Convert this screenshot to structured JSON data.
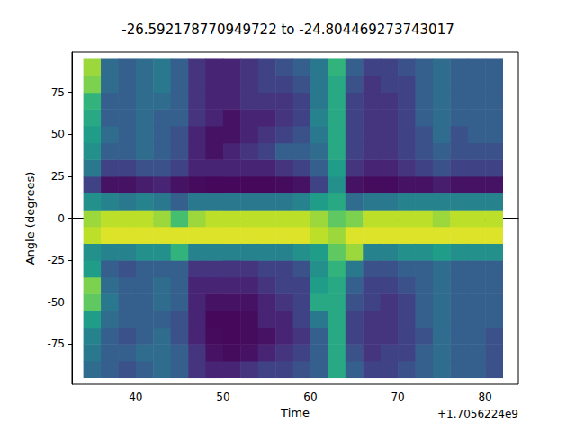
{
  "chart_data": {
    "type": "heatmap",
    "title": "-26.592178770949722 to -24.804469273743017",
    "x_label": "Time",
    "y_label": "Angle (degrees)",
    "annotations": [
      "+1.7056224e9"
    ],
    "x": [
      35,
      37,
      39,
      41,
      43,
      45,
      47,
      49,
      51,
      53,
      55,
      57,
      59,
      61,
      63,
      65,
      67,
      69,
      71,
      73,
      75,
      77,
      79,
      81
    ],
    "y": [
      -90,
      -80,
      -70,
      -60,
      -50,
      -40,
      -30,
      -20,
      -10,
      0,
      10,
      20,
      30,
      40,
      50,
      60,
      70,
      80,
      90
    ],
    "cells": [
      [
        0.35,
        0.4,
        0.45,
        0.55,
        0.75,
        0.8,
        0.55,
        0.5,
        0.9,
        0.85,
        0.5,
        0.2,
        0.4,
        0.5,
        0.55,
        0.6,
        0.65,
        0.8,
        0.85
      ],
      [
        0.3,
        0.3,
        0.3,
        0.35,
        0.4,
        0.35,
        0.3,
        0.45,
        0.95,
        0.9,
        0.45,
        0.05,
        0.2,
        0.3,
        0.35,
        0.3,
        0.3,
        0.35,
        0.35
      ],
      [
        0.25,
        0.3,
        0.25,
        0.3,
        0.3,
        0.3,
        0.25,
        0.45,
        0.95,
        0.9,
        0.4,
        0.05,
        0.2,
        0.3,
        0.3,
        0.3,
        0.3,
        0.3,
        0.3
      ],
      [
        0.3,
        0.35,
        0.3,
        0.3,
        0.3,
        0.3,
        0.3,
        0.5,
        0.95,
        0.9,
        0.45,
        0.08,
        0.25,
        0.35,
        0.35,
        0.35,
        0.35,
        0.35,
        0.35
      ],
      [
        0.35,
        0.35,
        0.35,
        0.3,
        0.35,
        0.35,
        0.3,
        0.5,
        0.95,
        0.85,
        0.4,
        0.1,
        0.25,
        0.3,
        0.3,
        0.3,
        0.35,
        0.4,
        0.4
      ],
      [
        0.3,
        0.3,
        0.25,
        0.25,
        0.3,
        0.3,
        0.3,
        0.65,
        0.95,
        0.7,
        0.3,
        0.05,
        0.2,
        0.25,
        0.25,
        0.3,
        0.3,
        0.3,
        0.3
      ],
      [
        0.15,
        0.15,
        0.1,
        0.1,
        0.1,
        0.1,
        0.15,
        0.45,
        0.95,
        0.85,
        0.4,
        0.03,
        0.1,
        0.1,
        0.1,
        0.15,
        0.15,
        0.15,
        0.15
      ],
      [
        0.1,
        0.05,
        0.03,
        0.02,
        0.05,
        0.1,
        0.15,
        0.45,
        0.95,
        0.9,
        0.4,
        0.02,
        0.1,
        0.05,
        0.05,
        0.1,
        0.1,
        0.1,
        0.1
      ],
      [
        0.1,
        0.03,
        0.02,
        0.02,
        0.05,
        0.1,
        0.15,
        0.45,
        0.95,
        0.9,
        0.4,
        0.02,
        0.1,
        0.1,
        0.05,
        0.05,
        0.1,
        0.1,
        0.1
      ],
      [
        0.15,
        0.05,
        0.03,
        0.03,
        0.05,
        0.1,
        0.15,
        0.45,
        0.95,
        0.9,
        0.4,
        0.02,
        0.1,
        0.15,
        0.1,
        0.1,
        0.15,
        0.15,
        0.15
      ],
      [
        0.2,
        0.1,
        0.05,
        0.1,
        0.1,
        0.15,
        0.2,
        0.45,
        0.95,
        0.9,
        0.4,
        0.02,
        0.1,
        0.2,
        0.15,
        0.1,
        0.15,
        0.2,
        0.2
      ],
      [
        0.2,
        0.15,
        0.1,
        0.1,
        0.15,
        0.2,
        0.2,
        0.45,
        0.95,
        0.9,
        0.4,
        0.03,
        0.15,
        0.3,
        0.2,
        0.15,
        0.15,
        0.2,
        0.25
      ],
      [
        0.25,
        0.2,
        0.15,
        0.2,
        0.2,
        0.2,
        0.25,
        0.5,
        0.95,
        0.9,
        0.45,
        0.05,
        0.2,
        0.3,
        0.25,
        0.2,
        0.2,
        0.25,
        0.3
      ],
      [
        0.3,
        0.3,
        0.3,
        0.4,
        0.6,
        0.55,
        0.5,
        0.55,
        0.9,
        0.85,
        0.55,
        0.2,
        0.3,
        0.35,
        0.4,
        0.45,
        0.4,
        0.4,
        0.4
      ],
      [
        0.6,
        0.6,
        0.6,
        0.6,
        0.6,
        0.6,
        0.65,
        0.75,
        0.85,
        0.75,
        0.6,
        0.5,
        0.55,
        0.6,
        0.6,
        0.6,
        0.6,
        0.6,
        0.65
      ],
      [
        0.3,
        0.25,
        0.2,
        0.2,
        0.25,
        0.3,
        0.4,
        0.85,
        0.95,
        0.8,
        0.35,
        0.05,
        0.15,
        0.2,
        0.2,
        0.2,
        0.2,
        0.25,
        0.3
      ],
      [
        0.2,
        0.15,
        0.15,
        0.15,
        0.2,
        0.2,
        0.25,
        0.45,
        0.95,
        0.9,
        0.4,
        0.03,
        0.1,
        0.15,
        0.15,
        0.15,
        0.15,
        0.15,
        0.2
      ],
      [
        0.2,
        0.2,
        0.15,
        0.15,
        0.15,
        0.2,
        0.25,
        0.45,
        0.95,
        0.9,
        0.4,
        0.03,
        0.1,
        0.15,
        0.15,
        0.15,
        0.15,
        0.2,
        0.2
      ],
      [
        0.25,
        0.2,
        0.2,
        0.2,
        0.2,
        0.25,
        0.3,
        0.5,
        0.95,
        0.9,
        0.45,
        0.05,
        0.15,
        0.2,
        0.2,
        0.2,
        0.2,
        0.2,
        0.25
      ],
      [
        0.3,
        0.3,
        0.25,
        0.3,
        0.3,
        0.3,
        0.3,
        0.5,
        0.95,
        0.9,
        0.45,
        0.05,
        0.2,
        0.25,
        0.25,
        0.3,
        0.3,
        0.3,
        0.3
      ],
      [
        0.35,
        0.35,
        0.35,
        0.35,
        0.35,
        0.35,
        0.35,
        0.55,
        0.95,
        0.85,
        0.45,
        0.08,
        0.25,
        0.3,
        0.35,
        0.35,
        0.35,
        0.35,
        0.35
      ],
      [
        0.3,
        0.3,
        0.3,
        0.3,
        0.3,
        0.3,
        0.3,
        0.5,
        0.95,
        0.9,
        0.45,
        0.05,
        0.2,
        0.25,
        0.25,
        0.3,
        0.3,
        0.3,
        0.3
      ],
      [
        0.3,
        0.3,
        0.3,
        0.3,
        0.3,
        0.3,
        0.3,
        0.5,
        0.95,
        0.9,
        0.45,
        0.05,
        0.2,
        0.25,
        0.3,
        0.3,
        0.3,
        0.3,
        0.3
      ],
      [
        0.25,
        0.25,
        0.25,
        0.3,
        0.3,
        0.3,
        0.3,
        0.5,
        0.95,
        0.9,
        0.45,
        0.05,
        0.2,
        0.25,
        0.3,
        0.3,
        0.3,
        0.3,
        0.3
      ]
    ],
    "color_range": [
      0,
      1
    ],
    "xlim": [
      32.7,
      83.8
    ],
    "xticks": [
      40,
      50,
      60,
      70,
      80
    ],
    "ylim": [
      -99,
      99
    ],
    "yticks": [
      -75,
      -50,
      -25,
      0,
      25,
      50,
      75
    ],
    "grid": false
  }
}
